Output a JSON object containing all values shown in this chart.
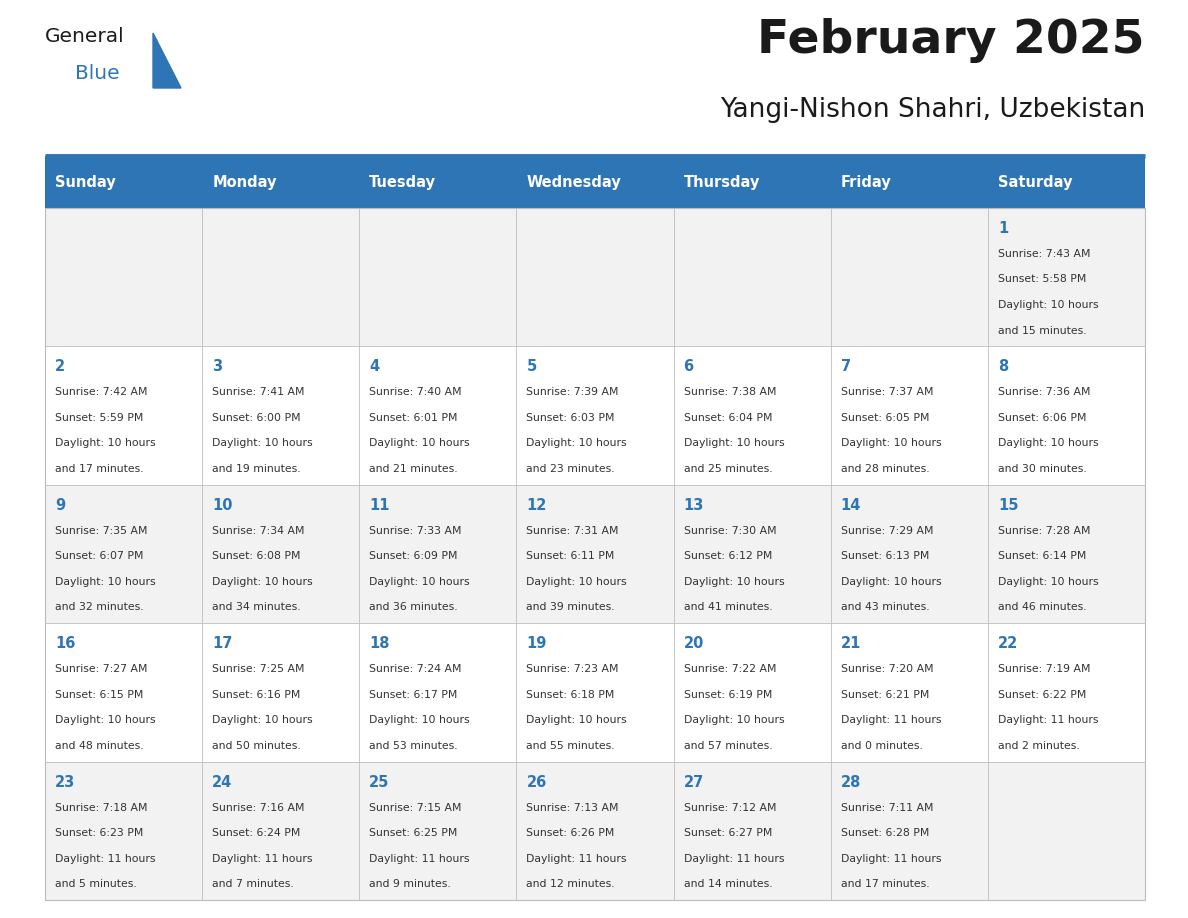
{
  "title": "February 2025",
  "subtitle": "Yangi-Nishon Shahri, Uzbekistan",
  "header_bg": "#2E75B6",
  "header_text": "#FFFFFF",
  "weekdays": [
    "Sunday",
    "Monday",
    "Tuesday",
    "Wednesday",
    "Thursday",
    "Friday",
    "Saturday"
  ],
  "row_bg_odd": "#F2F2F2",
  "row_bg_even": "#FFFFFF",
  "cell_border": "#BBBBBB",
  "day_number_color": "#2E75B6",
  "info_text_color": "#333333",
  "calendar": [
    [
      null,
      null,
      null,
      null,
      null,
      null,
      1
    ],
    [
      2,
      3,
      4,
      5,
      6,
      7,
      8
    ],
    [
      9,
      10,
      11,
      12,
      13,
      14,
      15
    ],
    [
      16,
      17,
      18,
      19,
      20,
      21,
      22
    ],
    [
      23,
      24,
      25,
      26,
      27,
      28,
      null
    ]
  ],
  "sunrise": {
    "1": "7:43 AM",
    "2": "7:42 AM",
    "3": "7:41 AM",
    "4": "7:40 AM",
    "5": "7:39 AM",
    "6": "7:38 AM",
    "7": "7:37 AM",
    "8": "7:36 AM",
    "9": "7:35 AM",
    "10": "7:34 AM",
    "11": "7:33 AM",
    "12": "7:31 AM",
    "13": "7:30 AM",
    "14": "7:29 AM",
    "15": "7:28 AM",
    "16": "7:27 AM",
    "17": "7:25 AM",
    "18": "7:24 AM",
    "19": "7:23 AM",
    "20": "7:22 AM",
    "21": "7:20 AM",
    "22": "7:19 AM",
    "23": "7:18 AM",
    "24": "7:16 AM",
    "25": "7:15 AM",
    "26": "7:13 AM",
    "27": "7:12 AM",
    "28": "7:11 AM"
  },
  "sunset": {
    "1": "5:58 PM",
    "2": "5:59 PM",
    "3": "6:00 PM",
    "4": "6:01 PM",
    "5": "6:03 PM",
    "6": "6:04 PM",
    "7": "6:05 PM",
    "8": "6:06 PM",
    "9": "6:07 PM",
    "10": "6:08 PM",
    "11": "6:09 PM",
    "12": "6:11 PM",
    "13": "6:12 PM",
    "14": "6:13 PM",
    "15": "6:14 PM",
    "16": "6:15 PM",
    "17": "6:16 PM",
    "18": "6:17 PM",
    "19": "6:18 PM",
    "20": "6:19 PM",
    "21": "6:21 PM",
    "22": "6:22 PM",
    "23": "6:23 PM",
    "24": "6:24 PM",
    "25": "6:25 PM",
    "26": "6:26 PM",
    "27": "6:27 PM",
    "28": "6:28 PM"
  },
  "daylight": {
    "1": [
      "10 hours",
      "and 15 minutes."
    ],
    "2": [
      "10 hours",
      "and 17 minutes."
    ],
    "3": [
      "10 hours",
      "and 19 minutes."
    ],
    "4": [
      "10 hours",
      "and 21 minutes."
    ],
    "5": [
      "10 hours",
      "and 23 minutes."
    ],
    "6": [
      "10 hours",
      "and 25 minutes."
    ],
    "7": [
      "10 hours",
      "and 28 minutes."
    ],
    "8": [
      "10 hours",
      "and 30 minutes."
    ],
    "9": [
      "10 hours",
      "and 32 minutes."
    ],
    "10": [
      "10 hours",
      "and 34 minutes."
    ],
    "11": [
      "10 hours",
      "and 36 minutes."
    ],
    "12": [
      "10 hours",
      "and 39 minutes."
    ],
    "13": [
      "10 hours",
      "and 41 minutes."
    ],
    "14": [
      "10 hours",
      "and 43 minutes."
    ],
    "15": [
      "10 hours",
      "and 46 minutes."
    ],
    "16": [
      "10 hours",
      "and 48 minutes."
    ],
    "17": [
      "10 hours",
      "and 50 minutes."
    ],
    "18": [
      "10 hours",
      "and 53 minutes."
    ],
    "19": [
      "10 hours",
      "and 55 minutes."
    ],
    "20": [
      "10 hours",
      "and 57 minutes."
    ],
    "21": [
      "11 hours",
      "and 0 minutes."
    ],
    "22": [
      "11 hours",
      "and 2 minutes."
    ],
    "23": [
      "11 hours",
      "and 5 minutes."
    ],
    "24": [
      "11 hours",
      "and 7 minutes."
    ],
    "25": [
      "11 hours",
      "and 9 minutes."
    ],
    "26": [
      "11 hours",
      "and 12 minutes."
    ],
    "27": [
      "11 hours",
      "and 14 minutes."
    ],
    "28": [
      "11 hours",
      "and 17 minutes."
    ]
  },
  "logo_general_color": "#1a1a1a",
  "logo_blue_color": "#2E75B6",
  "logo_triangle_color": "#2E75B6"
}
